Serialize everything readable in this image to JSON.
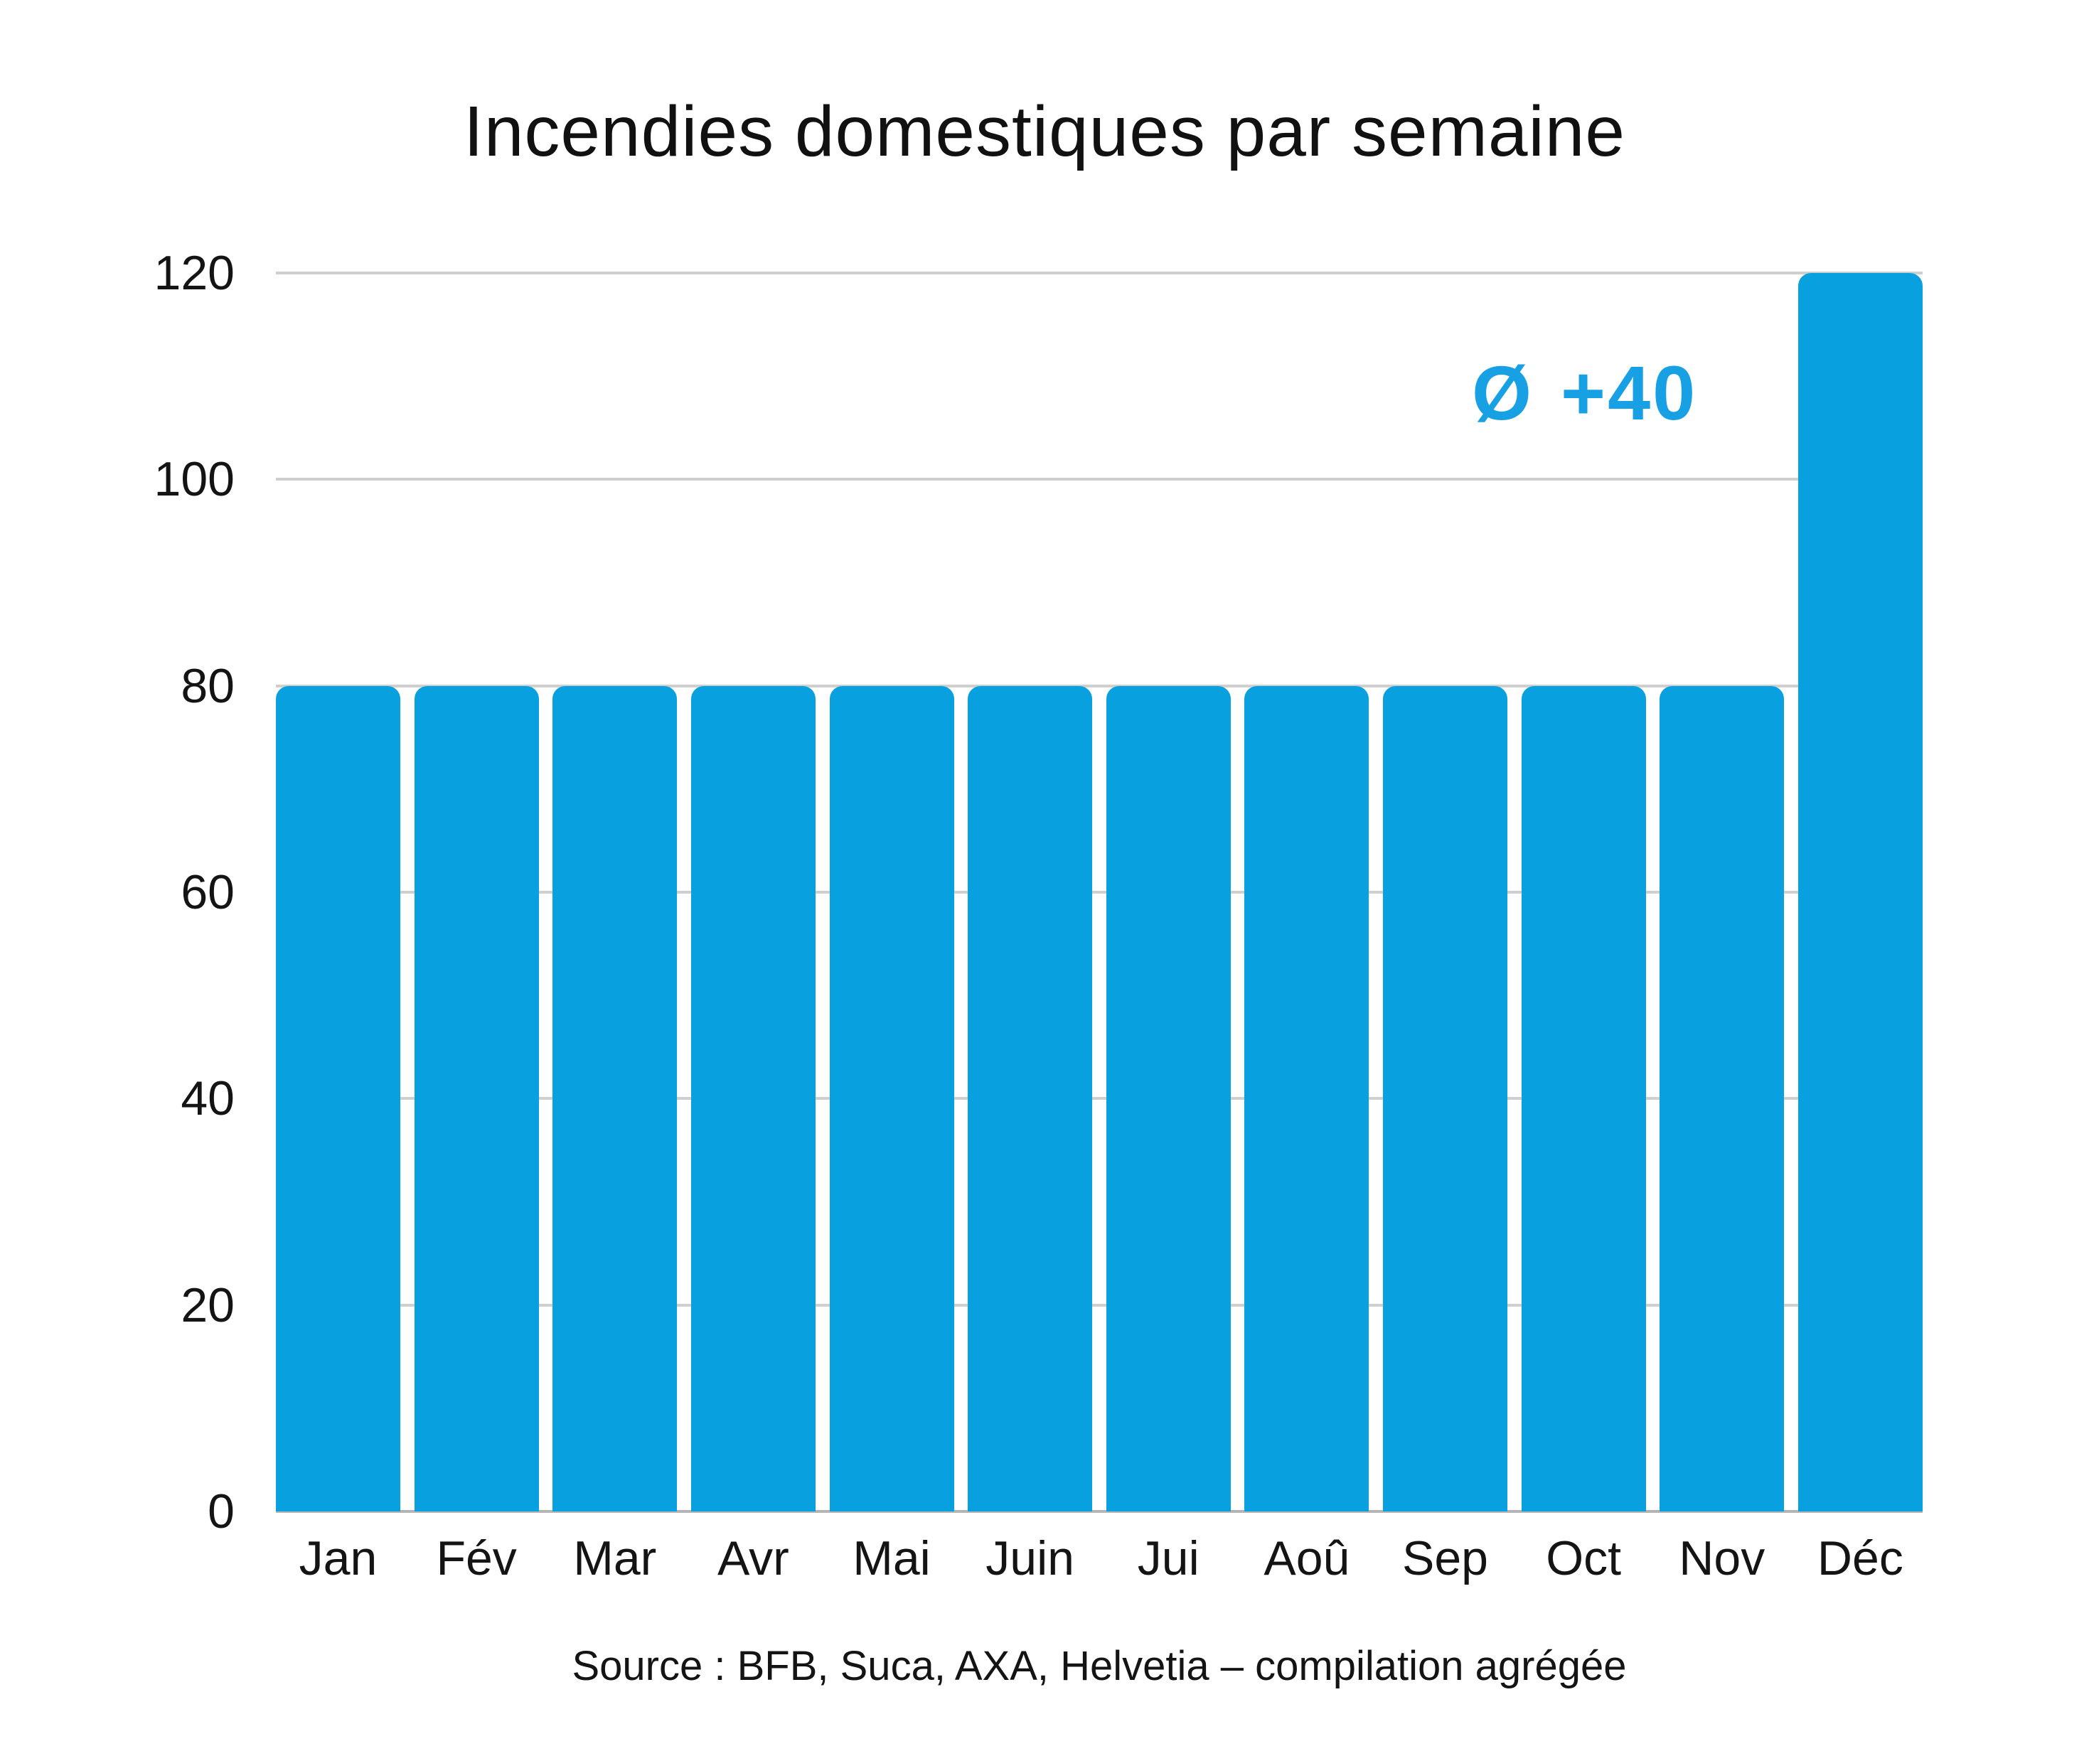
{
  "title": "Incendies domestiques par semaine",
  "annotation": {
    "symbol": "Ø",
    "text": "+40",
    "color": "#18a0e4"
  },
  "source": {
    "text": "Source : BFB, Suca, AXA, Helvetia – compilation agrégée"
  },
  "colors": {
    "bar": "#09a0df",
    "gridline": "#cfcfcf",
    "text": "#141414"
  },
  "chart_data": {
    "type": "bar",
    "title": "Incendies domestiques par semaine",
    "categories": [
      "Jan",
      "Fév",
      "Mar",
      "Avr",
      "Mai",
      "Juin",
      "Jui",
      "Aoû",
      "Sep",
      "Oct",
      "Nov",
      "Déc"
    ],
    "values": [
      80,
      80,
      80,
      80,
      80,
      80,
      80,
      80,
      80,
      80,
      80,
      120
    ],
    "xlabel": "",
    "ylabel": "",
    "ylim": [
      0,
      120
    ],
    "yticks": [
      0,
      20,
      40,
      60,
      80,
      100,
      120
    ],
    "grid": "horizontal",
    "legend": "none",
    "bar_color": "#09a0df",
    "annotation": "Ø +40"
  }
}
